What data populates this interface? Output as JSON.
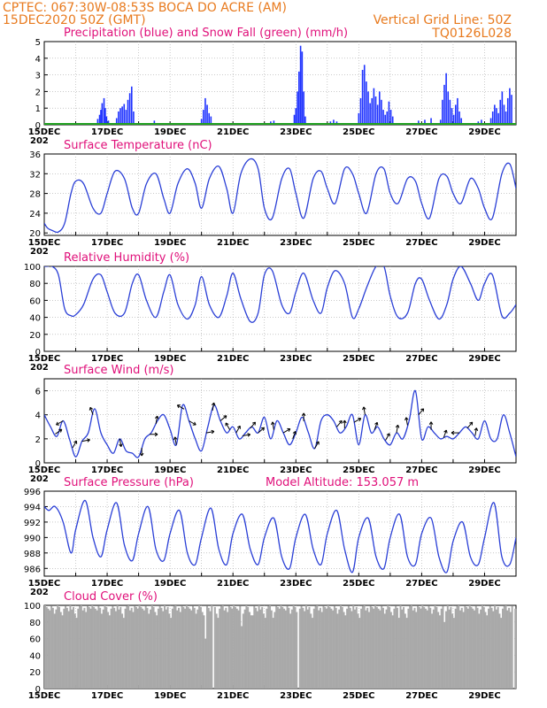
{
  "header": {
    "line1": "CPTEC:    067:30W-08:53S   BOCA DO ACRE (AM)",
    "line2": "15DEC2020  50Z  (GMT)",
    "grid_note": "Vertical Grid Line: 50Z",
    "code": "TQ0126L028"
  },
  "colors": {
    "header": "#e87a1e",
    "panel_title": "#e0107a",
    "precip": "#1f33ff",
    "snow": "#1fa01f",
    "line": "#2a3fd6",
    "cloud": "#a9a9a9",
    "grid": "#aaaaaa"
  },
  "time_axis": {
    "day_labels": [
      "15DEC",
      "17DEC",
      "19DEC",
      "21DEC",
      "23DEC",
      "25DEC",
      "27DEC",
      "29DEC"
    ],
    "year_label": "202"
  },
  "chart_data": [
    {
      "id": "precip",
      "type": "bar",
      "title": "Precipitation (blue) and Snow Fall (green) (mm/h)",
      "ylim": [
        0,
        5
      ],
      "yticks": [
        0,
        1,
        2,
        3,
        4,
        5
      ],
      "x_unit": "days since 15DEC2020 00Z",
      "bars": [
        [
          1.7,
          0.35
        ],
        [
          1.76,
          0.6
        ],
        [
          1.8,
          0.9
        ],
        [
          1.84,
          1.3
        ],
        [
          1.9,
          1.6
        ],
        [
          1.94,
          1.0
        ],
        [
          1.98,
          0.5
        ],
        [
          2.04,
          0.25
        ],
        [
          2.3,
          0.4
        ],
        [
          2.36,
          0.8
        ],
        [
          2.42,
          1.0
        ],
        [
          2.48,
          1.1
        ],
        [
          2.54,
          1.25
        ],
        [
          2.6,
          0.9
        ],
        [
          2.66,
          1.5
        ],
        [
          2.72,
          1.9
        ],
        [
          2.78,
          2.3
        ],
        [
          2.84,
          0.8
        ],
        [
          3.5,
          0.25
        ],
        [
          5.0,
          0.35
        ],
        [
          5.06,
          0.9
        ],
        [
          5.12,
          1.6
        ],
        [
          5.18,
          1.2
        ],
        [
          5.24,
          0.7
        ],
        [
          5.3,
          0.5
        ],
        [
          7.2,
          0.2
        ],
        [
          7.3,
          0.25
        ],
        [
          7.95,
          0.6
        ],
        [
          8.0,
          1.0
        ],
        [
          8.05,
          2.0
        ],
        [
          8.1,
          3.2
        ],
        [
          8.15,
          4.75
        ],
        [
          8.2,
          4.4
        ],
        [
          8.25,
          2.0
        ],
        [
          8.3,
          0.5
        ],
        [
          9.1,
          0.2
        ],
        [
          9.2,
          0.3
        ],
        [
          9.3,
          0.2
        ],
        [
          10.0,
          0.7
        ],
        [
          10.06,
          1.6
        ],
        [
          10.12,
          3.3
        ],
        [
          10.18,
          3.6
        ],
        [
          10.24,
          2.6
        ],
        [
          10.3,
          2.0
        ],
        [
          10.36,
          1.3
        ],
        [
          10.42,
          1.6
        ],
        [
          10.48,
          2.2
        ],
        [
          10.54,
          1.7
        ],
        [
          10.6,
          1.2
        ],
        [
          10.66,
          2.0
        ],
        [
          10.72,
          1.5
        ],
        [
          10.78,
          0.9
        ],
        [
          10.84,
          0.6
        ],
        [
          10.9,
          0.8
        ],
        [
          10.96,
          1.4
        ],
        [
          11.02,
          0.9
        ],
        [
          11.08,
          0.5
        ],
        [
          11.9,
          0.25
        ],
        [
          12.1,
          0.3
        ],
        [
          12.3,
          0.4
        ],
        [
          12.6,
          0.3
        ],
        [
          12.66,
          1.5
        ],
        [
          12.72,
          2.4
        ],
        [
          12.78,
          3.1
        ],
        [
          12.84,
          2.0
        ],
        [
          12.9,
          1.5
        ],
        [
          12.96,
          1.0
        ],
        [
          13.02,
          0.6
        ],
        [
          13.08,
          1.2
        ],
        [
          13.14,
          1.6
        ],
        [
          13.2,
          0.8
        ],
        [
          13.26,
          0.4
        ],
        [
          13.8,
          0.2
        ],
        [
          13.9,
          0.3
        ],
        [
          14.2,
          0.4
        ],
        [
          14.26,
          0.8
        ],
        [
          14.32,
          1.2
        ],
        [
          14.38,
          1.0
        ],
        [
          14.44,
          0.7
        ],
        [
          14.5,
          1.5
        ],
        [
          14.56,
          2.0
        ],
        [
          14.62,
          1.2
        ],
        [
          14.68,
          0.8
        ],
        [
          14.74,
          1.6
        ],
        [
          14.8,
          2.2
        ],
        [
          14.86,
          1.8
        ]
      ],
      "snow_values": "0"
    },
    {
      "id": "temp",
      "type": "line",
      "title": "Surface Temperature (nC)",
      "ylim": [
        19.5,
        36
      ],
      "yticks": [
        20,
        24,
        28,
        32,
        36
      ],
      "x": [
        0,
        0.1,
        0.25,
        0.45,
        0.65,
        0.85,
        1.0,
        1.25,
        1.55,
        1.8,
        2.0,
        2.25,
        2.55,
        2.8,
        3.0,
        3.25,
        3.55,
        3.8,
        4.0,
        4.25,
        4.55,
        4.8,
        5.0,
        5.25,
        5.55,
        5.8,
        6.0,
        6.25,
        6.55,
        6.8,
        7.0,
        7.25,
        7.55,
        7.8,
        8.0,
        8.25,
        8.55,
        8.8,
        9.0,
        9.25,
        9.55,
        9.8,
        10.0,
        10.25,
        10.55,
        10.8,
        11.0,
        11.25,
        11.55,
        11.8,
        12.0,
        12.25,
        12.55,
        12.8,
        13.0,
        13.25,
        13.55,
        13.8,
        14.0,
        14.25,
        14.55,
        14.8,
        15.0
      ],
      "y": [
        22,
        21,
        20.5,
        20.2,
        22,
        28,
        30.5,
        30,
        25,
        24,
        28,
        32.5,
        31,
        25,
        24,
        30,
        32,
        27,
        24,
        30,
        33,
        30,
        25,
        31,
        33.5,
        29,
        24,
        32,
        35,
        33,
        25,
        23,
        31,
        33,
        28,
        23,
        31,
        32.5,
        29,
        26,
        33,
        32,
        28,
        24,
        32,
        33,
        28,
        26,
        31,
        30.5,
        26,
        23,
        31,
        31.5,
        28,
        26,
        31,
        29,
        25,
        23,
        32,
        34,
        29
      ]
    },
    {
      "id": "rh",
      "type": "line",
      "title": "Relative Humidity (%)",
      "ylim": [
        0,
        100
      ],
      "yticks": [
        0,
        20,
        40,
        60,
        80,
        100
      ],
      "x": [
        0,
        0.1,
        0.25,
        0.45,
        0.65,
        0.85,
        1.0,
        1.25,
        1.55,
        1.8,
        2.0,
        2.25,
        2.55,
        2.8,
        3.0,
        3.25,
        3.55,
        3.8,
        4.0,
        4.25,
        4.55,
        4.8,
        5.0,
        5.25,
        5.55,
        5.8,
        6.0,
        6.25,
        6.55,
        6.8,
        7.0,
        7.25,
        7.55,
        7.8,
        8.0,
        8.25,
        8.55,
        8.8,
        9.0,
        9.25,
        9.55,
        9.8,
        10.0,
        10.25,
        10.55,
        10.8,
        11.0,
        11.25,
        11.55,
        11.8,
        12.0,
        12.25,
        12.55,
        12.8,
        13.0,
        13.25,
        13.55,
        13.8,
        14.0,
        14.25,
        14.55,
        14.8,
        15.0
      ],
      "y": [
        100,
        100,
        100,
        90,
        50,
        42,
        43,
        55,
        85,
        90,
        70,
        45,
        45,
        80,
        90,
        60,
        40,
        70,
        90,
        55,
        38,
        55,
        88,
        55,
        40,
        65,
        92,
        62,
        35,
        45,
        90,
        95,
        55,
        45,
        70,
        92,
        60,
        45,
        75,
        95,
        80,
        40,
        50,
        75,
        100,
        100,
        65,
        40,
        45,
        80,
        85,
        60,
        38,
        55,
        85,
        100,
        80,
        60,
        80,
        90,
        42,
        45,
        55
      ]
    },
    {
      "id": "wind",
      "type": "line",
      "title": "Surface Wind (m/s)",
      "ylim": [
        0,
        7
      ],
      "yticks": [
        0,
        2,
        4,
        6
      ],
      "x": [
        0,
        0.2,
        0.4,
        0.6,
        0.8,
        1.0,
        1.2,
        1.4,
        1.6,
        1.8,
        2.0,
        2.2,
        2.4,
        2.6,
        2.8,
        3.0,
        3.2,
        3.4,
        3.6,
        3.8,
        4.0,
        4.2,
        4.4,
        4.6,
        4.8,
        5.0,
        5.2,
        5.4,
        5.6,
        5.8,
        6.0,
        6.2,
        6.4,
        6.6,
        6.8,
        7.0,
        7.2,
        7.4,
        7.6,
        7.8,
        8.0,
        8.2,
        8.4,
        8.6,
        8.8,
        9.0,
        9.2,
        9.4,
        9.6,
        9.8,
        10.0,
        10.2,
        10.4,
        10.6,
        10.8,
        11.0,
        11.2,
        11.4,
        11.6,
        11.8,
        12.0,
        12.2,
        12.4,
        12.6,
        12.8,
        13.0,
        13.2,
        13.4,
        13.6,
        13.8,
        14.0,
        14.2,
        14.4,
        14.6,
        14.8,
        15.0
      ],
      "y": [
        4.0,
        3.0,
        2.2,
        3.5,
        2.0,
        0.5,
        1.8,
        2.5,
        4.5,
        2.5,
        1.5,
        0.8,
        2.0,
        1.0,
        0.8,
        0.5,
        2.0,
        2.5,
        3.5,
        4.0,
        2.8,
        1.5,
        4.8,
        3.5,
        2.0,
        1.0,
        3.0,
        4.8,
        3.5,
        2.5,
        3.0,
        2.0,
        2.5,
        3.0,
        2.5,
        3.8,
        2.0,
        3.5,
        2.5,
        1.5,
        2.5,
        3.8,
        2.5,
        1.2,
        3.5,
        4.0,
        3.5,
        2.5,
        3.0,
        4.0,
        1.5,
        4.0,
        2.5,
        3.0,
        2.0,
        1.5,
        2.5,
        2.0,
        3.5,
        6.0,
        2.0,
        3.0,
        2.5,
        2.0,
        2.2,
        2.0,
        2.5,
        3.0,
        2.5,
        2.0,
        3.5,
        2.0,
        2.0,
        4.0,
        2.5,
        0.5
      ],
      "arrows": [
        [
          0.35,
          55
        ],
        [
          0.6,
          240
        ],
        [
          0.9,
          30
        ],
        [
          1.2,
          80
        ],
        [
          1.55,
          340
        ],
        [
          2.4,
          170
        ],
        [
          3.1,
          180
        ],
        [
          3.35,
          90
        ],
        [
          3.55,
          10
        ],
        [
          4.2,
          350
        ],
        [
          4.45,
          300
        ],
        [
          4.6,
          120
        ],
        [
          5.15,
          80
        ],
        [
          5.35,
          10
        ],
        [
          5.6,
          50
        ],
        [
          5.9,
          330
        ],
        [
          6.1,
          30
        ],
        [
          6.3,
          80
        ],
        [
          6.55,
          40
        ],
        [
          6.8,
          50
        ],
        [
          7.3,
          350
        ],
        [
          7.6,
          60
        ],
        [
          7.9,
          20
        ],
        [
          8.25,
          0
        ],
        [
          8.6,
          30
        ],
        [
          9.3,
          40
        ],
        [
          9.55,
          0
        ],
        [
          9.85,
          60
        ],
        [
          10.2,
          350
        ],
        [
          10.5,
          20
        ],
        [
          10.85,
          30
        ],
        [
          11.2,
          10
        ],
        [
          11.55,
          350
        ],
        [
          11.9,
          40
        ],
        [
          12.3,
          0
        ],
        [
          12.7,
          20
        ],
        [
          13.2,
          270
        ],
        [
          13.45,
          40
        ],
        [
          13.7,
          10
        ]
      ]
    },
    {
      "id": "pres",
      "type": "line",
      "title": "Surface Pressure (hPa)",
      "annotation": "Model Altitude: 153.057 m",
      "ylim": [
        985,
        996
      ],
      "yticks": [
        986,
        988,
        990,
        992,
        994,
        996
      ],
      "x": [
        0,
        0.15,
        0.35,
        0.6,
        0.85,
        1.0,
        1.3,
        1.55,
        1.8,
        2.0,
        2.3,
        2.55,
        2.8,
        3.0,
        3.3,
        3.55,
        3.8,
        4.0,
        4.3,
        4.55,
        4.8,
        5.0,
        5.3,
        5.55,
        5.8,
        6.0,
        6.3,
        6.55,
        6.8,
        7.0,
        7.3,
        7.55,
        7.8,
        8.0,
        8.3,
        8.55,
        8.8,
        9.0,
        9.3,
        9.55,
        9.8,
        10.0,
        10.3,
        10.55,
        10.8,
        11.0,
        11.3,
        11.55,
        11.8,
        12.0,
        12.3,
        12.55,
        12.8,
        13.0,
        13.3,
        13.55,
        13.8,
        14.0,
        14.3,
        14.55,
        14.8,
        15.0
      ],
      "y": [
        994,
        993.5,
        994,
        992,
        988,
        991,
        994.8,
        990,
        987.5,
        991,
        994.5,
        989,
        987,
        990.5,
        994,
        988.5,
        987,
        990.5,
        993.5,
        988,
        986.5,
        990,
        993.8,
        988.5,
        986.5,
        990.5,
        993,
        988.5,
        986.5,
        990,
        992.5,
        987.5,
        986,
        990,
        993,
        988.5,
        986.5,
        990.5,
        993.5,
        988.5,
        985.5,
        990,
        992.5,
        987.5,
        986,
        990,
        993,
        987.5,
        986.5,
        990.5,
        992.5,
        987.5,
        985.5,
        989.5,
        992,
        987.5,
        986.5,
        990,
        994.5,
        987.5,
        986.5,
        990
      ]
    },
    {
      "id": "cloud",
      "type": "bar",
      "title": "Cloud Cover (%)",
      "ylim": [
        0,
        100
      ],
      "yticks": [
        0,
        20,
        40,
        60,
        80,
        100
      ],
      "x_unit": "days since 15DEC2020 00Z",
      "bar_step_days": 0.05,
      "pattern": [
        100,
        98,
        96,
        94,
        99,
        97,
        90,
        95,
        100,
        98,
        92,
        88,
        96,
        99,
        97,
        93,
        100,
        95,
        98,
        90,
        85,
        96,
        99,
        100,
        94,
        97,
        92,
        99,
        98,
        96
      ],
      "dips": [
        [
          5.1,
          60
        ],
        [
          5.35,
          0
        ],
        [
          6.25,
          75
        ],
        [
          6.6,
          88
        ],
        [
          7.25,
          85
        ],
        [
          8.05,
          0
        ],
        [
          11.25,
          85
        ],
        [
          12.7,
          80
        ],
        [
          14.9,
          0
        ]
      ]
    }
  ]
}
